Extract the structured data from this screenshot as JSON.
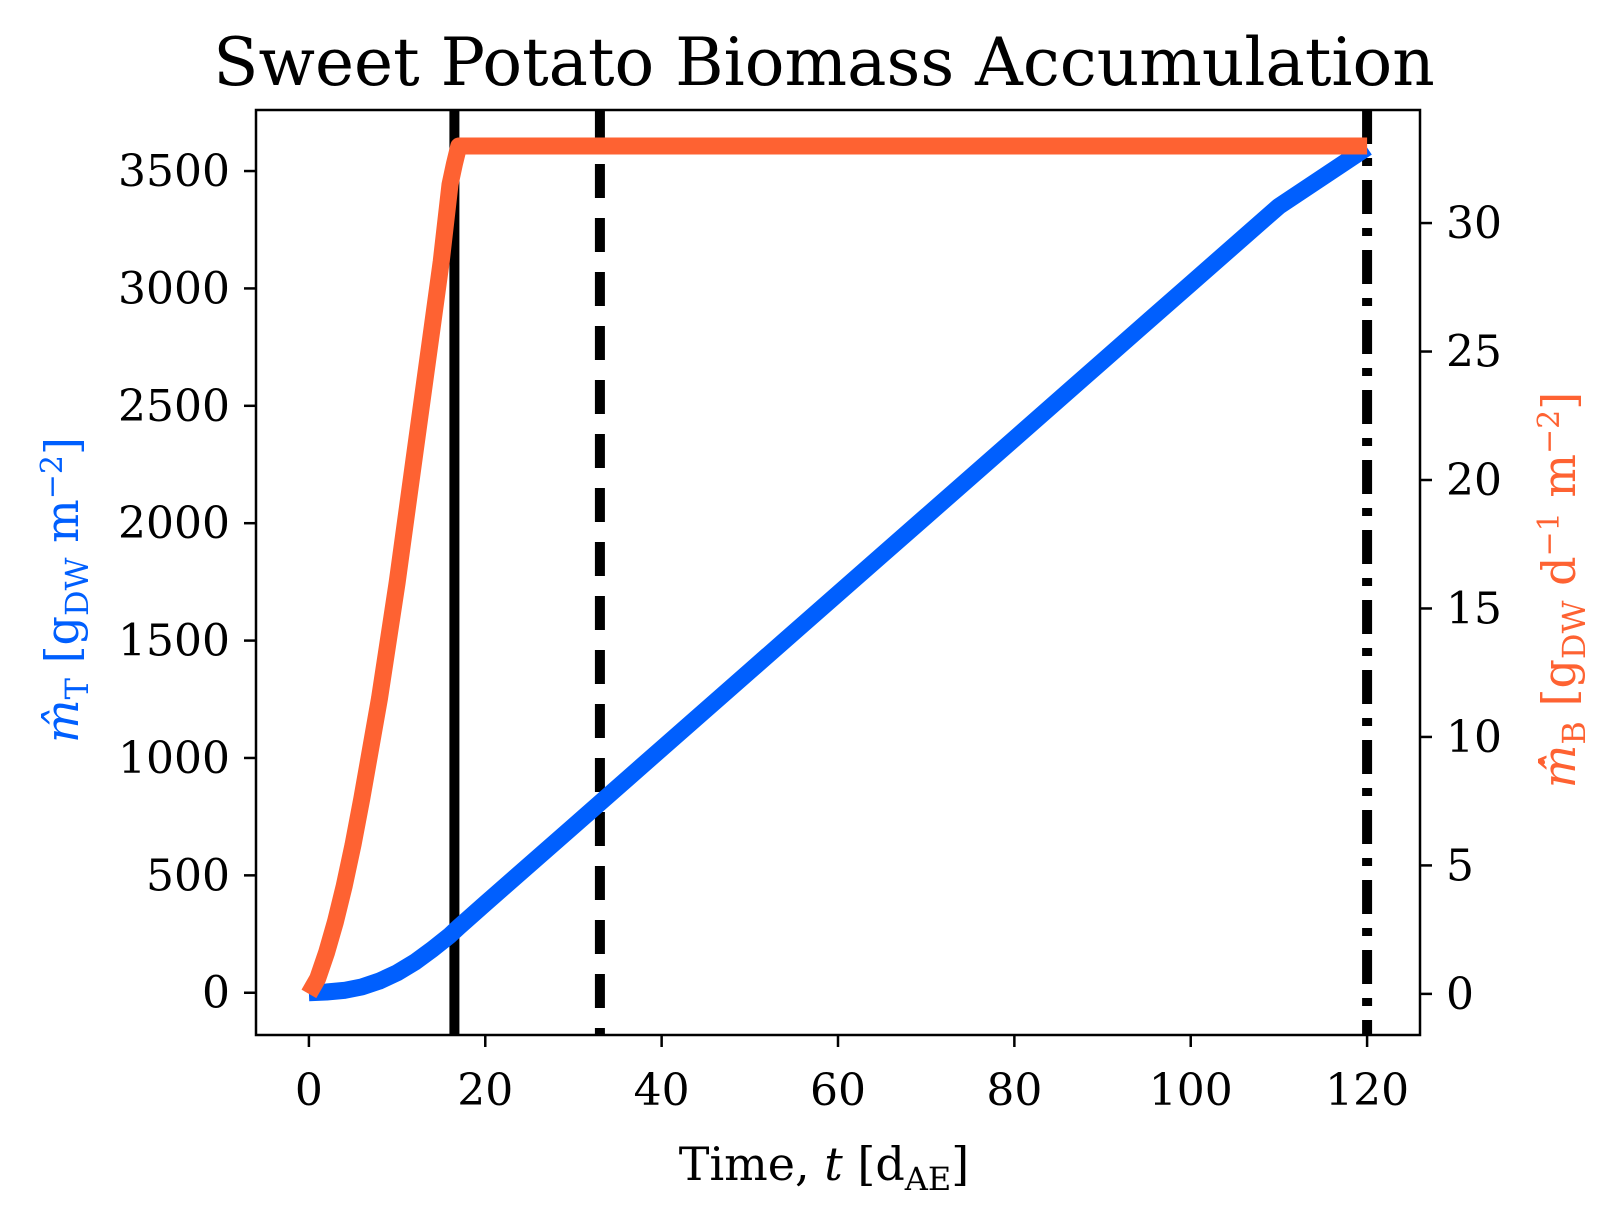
{
  "chart_data": {
    "type": "line",
    "title": "Sweet Potato Biomass Accumulation",
    "xlabel": {
      "main": "Time, ",
      "var": "t",
      "unit": "[d",
      "unit_sub": "AE",
      "unit_close": "]"
    },
    "ylabel_left": {
      "var": "m̂",
      "var_sub": "T",
      "unit_open": " [g",
      "unit_sub": "DW",
      "unit_rest": " m",
      "unit_sup": "−2",
      "unit_close": "]"
    },
    "ylabel_right": {
      "var": "m̂̇",
      "var_sub": "B",
      "unit_open": " [g",
      "unit_sub": "DW",
      "unit_d": " d",
      "unit_d_sup": "−1",
      "unit_rest": " m",
      "unit_sup": "−2",
      "unit_close": "]"
    },
    "xlim": [
      -6,
      126
    ],
    "ylim_left": [
      -180,
      3760
    ],
    "ylim_right": [
      -1.6,
      34.4
    ],
    "x_ticks": [
      0,
      20,
      40,
      60,
      80,
      100,
      120
    ],
    "y_left_ticks": [
      0,
      500,
      1000,
      1500,
      2000,
      2500,
      3000,
      3500
    ],
    "y_right_ticks": [
      0,
      5,
      10,
      15,
      20,
      25,
      30
    ],
    "x_tick_labels": [
      "0",
      "20",
      "40",
      "60",
      "80",
      "100",
      "120"
    ],
    "y_left_tick_labels": [
      "0",
      "500",
      "1000",
      "1500",
      "2000",
      "2500",
      "3000",
      "3500"
    ],
    "y_right_tick_labels": [
      "0",
      "5",
      "10",
      "15",
      "20",
      "25",
      "30"
    ],
    "grid": false,
    "series": [
      {
        "axis": "left",
        "color": "#005ffe",
        "x": [
          0,
          2,
          4,
          6,
          8,
          10,
          12,
          14,
          16,
          17,
          20,
          30,
          40,
          50,
          60,
          70,
          80,
          90,
          100,
          110,
          120
        ],
        "values": [
          0,
          3,
          10,
          25,
          50,
          85,
          130,
          185,
          245,
          280,
          380,
          710,
          1040,
          1370,
          1700,
          2030,
          2360,
          2690,
          3020,
          3350,
          3600
        ]
      },
      {
        "axis": "right",
        "color": "#fe6232",
        "x": [
          0,
          1,
          2,
          3,
          4,
          5,
          6,
          8,
          10,
          12,
          14,
          15,
          16,
          16.5,
          17,
          20,
          40,
          60,
          80,
          100,
          120
        ],
        "values": [
          0,
          0.6,
          1.6,
          2.8,
          4.2,
          5.8,
          7.6,
          11.5,
          16,
          21,
          26,
          28.5,
          31.5,
          32.3,
          33,
          33,
          33,
          33,
          33,
          33,
          33
        ]
      }
    ],
    "vertical_lines": [
      {
        "x": 16.5,
        "style": "solid",
        "color": "#000000"
      },
      {
        "x": 33,
        "style": "dashed",
        "color": "#000000"
      },
      {
        "x": 120,
        "style": "dashdot",
        "color": "#000000"
      }
    ]
  }
}
